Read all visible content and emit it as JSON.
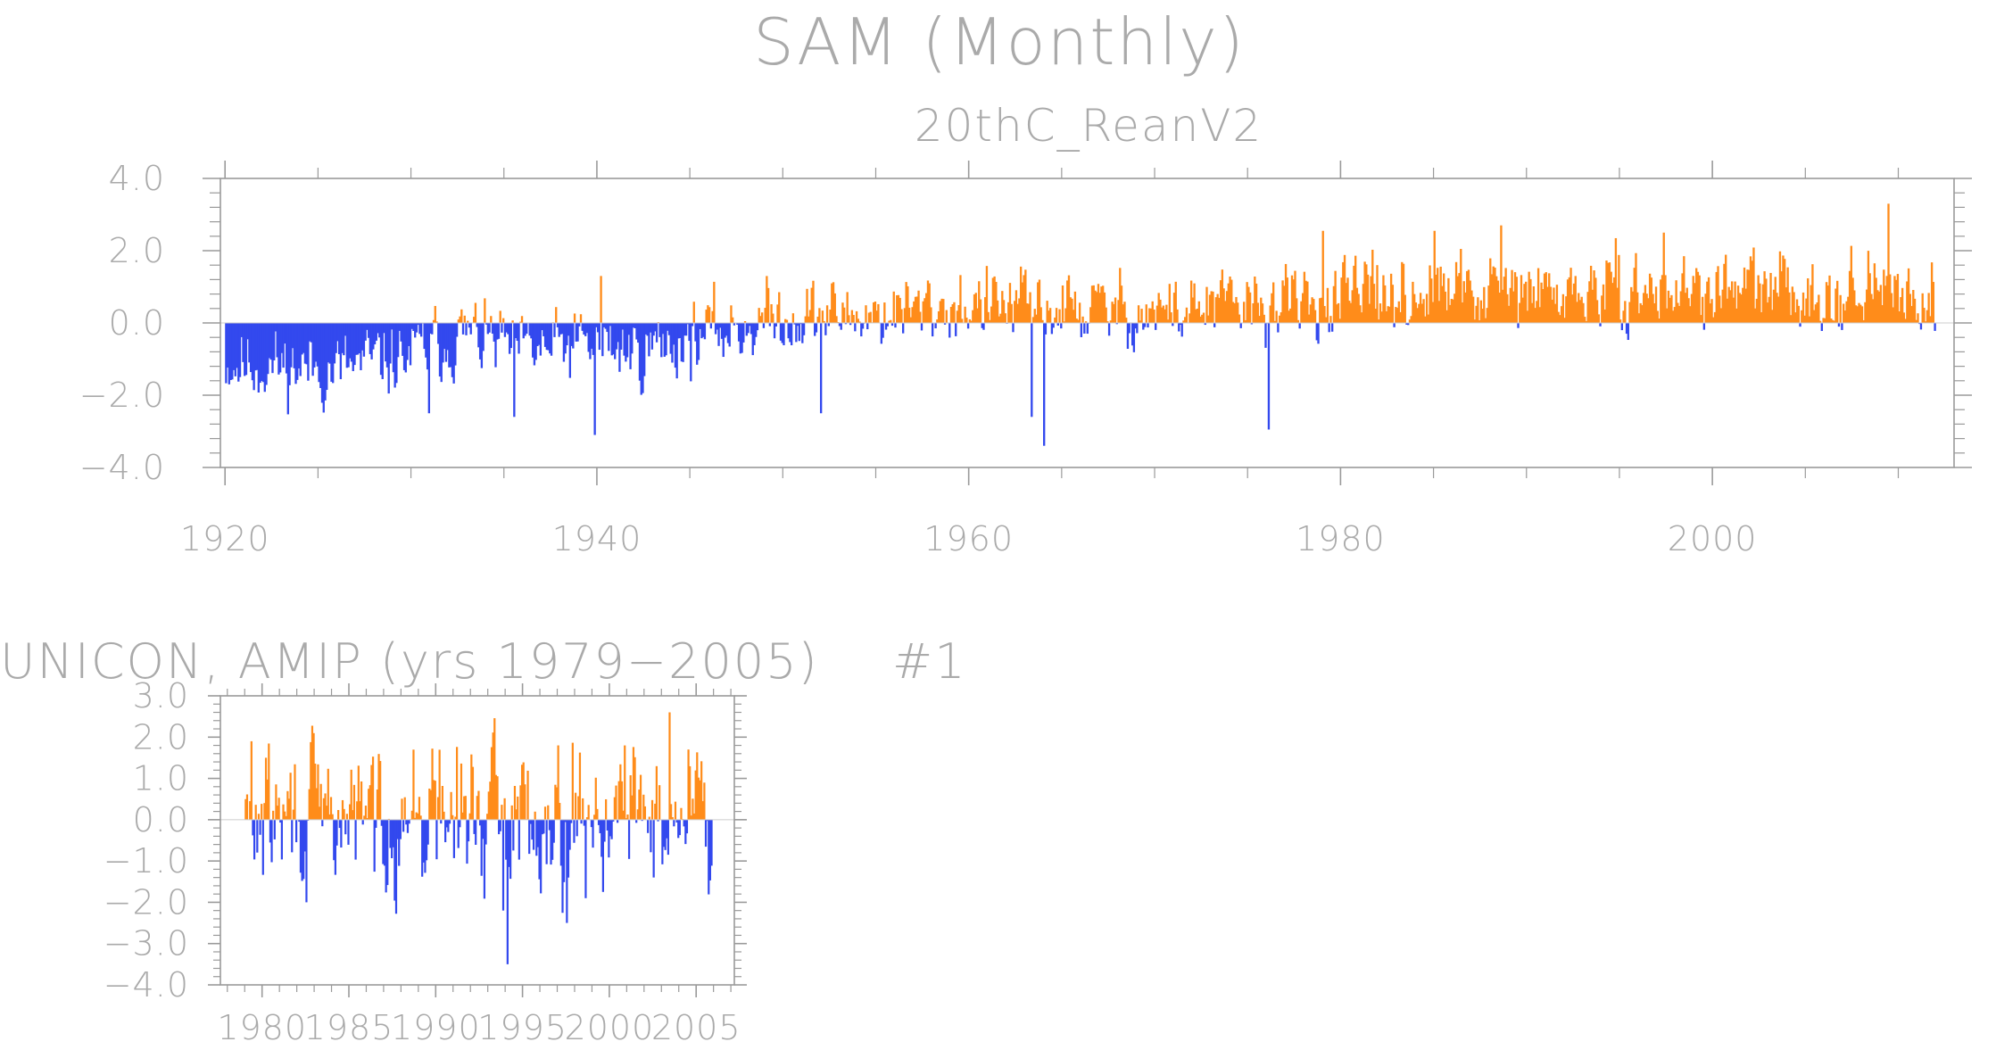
{
  "title": "SAM (Monthly)",
  "colors": {
    "positive": "#ff8c1a",
    "negative": "#3349ee",
    "axis": "#9a9a9a",
    "text": "#aaaaaa"
  },
  "chart_data": [
    {
      "type": "bar",
      "subtitle": "20thC_ReanV2",
      "xlabel": "",
      "ylabel": "",
      "xlim": [
        1919.75,
        2013
      ],
      "ylim": [
        -4.0,
        4.0
      ],
      "xticks": [
        1920,
        1940,
        1960,
        1980,
        2000
      ],
      "xtick_labels": [
        "1920",
        "1940",
        "1960",
        "1980",
        "2000"
      ],
      "yticks": [
        -4.0,
        -2.0,
        0.0,
        2.0,
        4.0
      ],
      "ytick_labels": [
        "−4.0",
        "−2.0",
        "0.0",
        "2.0",
        "4.0"
      ],
      "x_start": 1920.0,
      "months": 1104,
      "trend_segments": [
        [
          1920,
          -1.1
        ],
        [
          1926,
          -1.3
        ],
        [
          1930,
          -0.9
        ],
        [
          1933,
          -0.3
        ],
        [
          1936,
          -0.8
        ],
        [
          1940,
          -0.6
        ],
        [
          1942,
          -0.8
        ],
        [
          1946,
          -0.3
        ],
        [
          1950,
          0.2
        ],
        [
          1955,
          0.25
        ],
        [
          1960,
          0.5
        ],
        [
          1965,
          0.4
        ],
        [
          1970,
          0.3
        ],
        [
          1975,
          0.5
        ],
        [
          1980,
          0.6
        ],
        [
          1985,
          0.85
        ],
        [
          1990,
          0.8
        ],
        [
          1995,
          0.85
        ],
        [
          2000,
          0.9
        ],
        [
          2005,
          0.9
        ],
        [
          2012,
          0.8
        ]
      ],
      "extremes": [
        {
          "x": 1939.8,
          "y": -3.1
        },
        {
          "x": 1935.5,
          "y": -2.6
        },
        {
          "x": 1930.9,
          "y": -2.5
        },
        {
          "x": 1964.0,
          "y": -3.4
        },
        {
          "x": 1963.3,
          "y": -2.6
        },
        {
          "x": 1976.1,
          "y": -2.95
        },
        {
          "x": 1952.0,
          "y": -2.5
        },
        {
          "x": 1979.0,
          "y": 2.55
        },
        {
          "x": 1985.0,
          "y": 2.55
        },
        {
          "x": 1988.6,
          "y": 2.7
        },
        {
          "x": 2009.4,
          "y": 3.3
        },
        {
          "x": 1940.2,
          "y": 1.3
        },
        {
          "x": 1997.3,
          "y": 2.5
        },
        {
          "x": 1981.9,
          "y": 1.6
        }
      ]
    },
    {
      "type": "bar",
      "title": "UNICON, AMIP (yrs 1979−2005)",
      "annotation": "#1",
      "xlabel": "",
      "ylabel": "",
      "xlim": [
        1977.6,
        2007.2
      ],
      "ylim": [
        -4.0,
        3.0
      ],
      "xticks": [
        1980,
        1985,
        1990,
        1995,
        2000,
        2005
      ],
      "xtick_labels": [
        "1980",
        "1985",
        "1990",
        "1995",
        "2000",
        "2005"
      ],
      "yticks": [
        -4.0,
        -3.0,
        -2.0,
        -1.0,
        0.0,
        1.0,
        2.0,
        3.0
      ],
      "ytick_labels": [
        "−4.0",
        "−3.0",
        "−2.0",
        "−1.0",
        "0.0",
        "1.0",
        "2.0",
        "3.0"
      ],
      "x_start": 1979.0,
      "months": 324,
      "trend_segments": [
        [
          1979,
          0.0
        ],
        [
          1992,
          0.1
        ],
        [
          2005,
          0.2
        ]
      ],
      "extremes": [
        {
          "x": 1994.1,
          "y": -3.5
        },
        {
          "x": 1993.8,
          "y": -2.2
        },
        {
          "x": 1997.5,
          "y": -2.5
        },
        {
          "x": 2003.4,
          "y": 2.6
        },
        {
          "x": 1979.3,
          "y": 1.9
        },
        {
          "x": 1982.5,
          "y": -2.0
        },
        {
          "x": 1997.0,
          "y": 1.8
        },
        {
          "x": 2004.5,
          "y": 1.7
        },
        {
          "x": 1998.6,
          "y": -1.9
        }
      ]
    }
  ]
}
